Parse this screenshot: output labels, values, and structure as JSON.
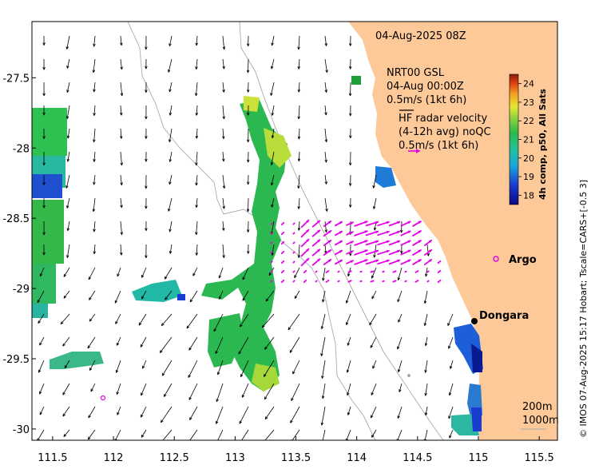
{
  "map": {
    "timestamp": "04-Aug-2025 08Z",
    "model_lines": [
      "NRT00 GSL",
      "04-Aug 00:00Z",
      "0.5m/s (1kt 6h)"
    ],
    "radar_lines": [
      "HF radar velocity",
      "(4-12h avg) noQC",
      "0.5m/s (1kt 6h)"
    ],
    "colorbar": {
      "title": "4h comp, p50, All Sats",
      "ticks": [
        "24",
        "23",
        "22",
        "21",
        "20",
        "19",
        "18"
      ],
      "range": [
        17.5,
        24.5
      ]
    },
    "places": [
      {
        "name": "Argo",
        "lon": 114.95,
        "lat": -28.77
      },
      {
        "name": "Dongara",
        "lon": 114.93,
        "lat": -29.25
      }
    ],
    "extra_argo": {
      "lon": 111.9,
      "lat": -29.8
    },
    "depth_labels": [
      "200m",
      "1000m"
    ],
    "x_ticks": [
      "111.5",
      "112",
      "112.5",
      "113",
      "113.5",
      "114",
      "114.5",
      "115",
      "115.5"
    ],
    "y_ticks": [
      "-27.5",
      "-28",
      "-28.5",
      "-29",
      "-29.5",
      "-30"
    ],
    "side_credit": "© IMOS 07-Aug-2025 15:17 Hobart; Tscale=CARS+[-0.5 3]",
    "colors": {
      "land": "#fdc999",
      "radar_arrow": "#e600e6",
      "argo": "#e600e6",
      "current_arrow": "#000000"
    }
  }
}
